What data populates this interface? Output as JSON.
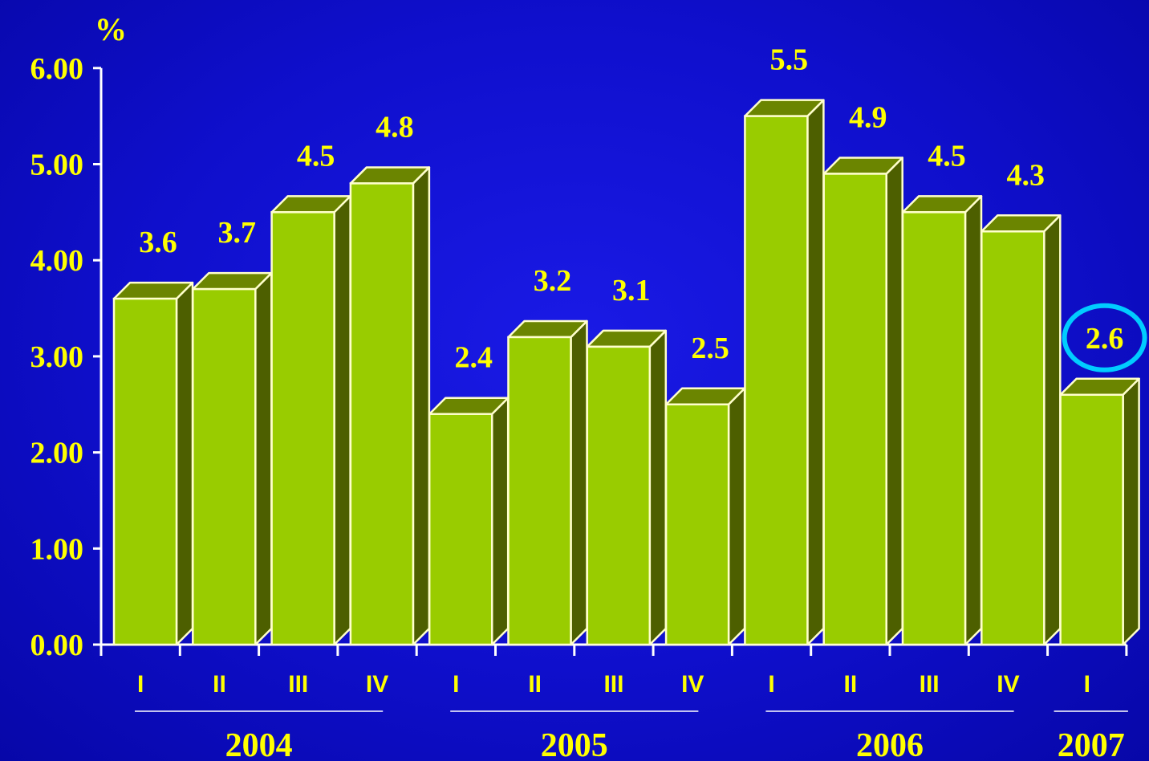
{
  "chart_data": {
    "type": "bar",
    "title": "",
    "ylabel": "%",
    "xlabel": "",
    "ylim": [
      0,
      6
    ],
    "yticks": [
      "0.00",
      "1.00",
      "2.00",
      "3.00",
      "4.00",
      "5.00",
      "6.00"
    ],
    "grid": false,
    "style": "3d",
    "categories": [
      "I",
      "II",
      "III",
      "IV",
      "I",
      "II",
      "III",
      "IV",
      "I",
      "II",
      "III",
      "IV",
      "I"
    ],
    "values": [
      3.6,
      3.7,
      4.5,
      4.8,
      2.4,
      3.2,
      3.1,
      2.5,
      5.5,
      4.9,
      4.5,
      4.3,
      2.6
    ],
    "data_labels": [
      "3.6",
      "3.7",
      "4.5",
      "4.8",
      "2.4",
      "3.2",
      "3.1",
      "2.5",
      "5.5",
      "4.9",
      "4.5",
      "4.3",
      "2.6"
    ],
    "groups": [
      {
        "label": "2004",
        "count": 4
      },
      {
        "label": "2005",
        "count": 4
      },
      {
        "label": "2006",
        "count": 4
      },
      {
        "label": "2007",
        "count": 1
      }
    ],
    "highlight_index": 12,
    "colors": {
      "bar_front": "#99cc00",
      "bar_side": "#4d5f00",
      "bar_top": "#6b8500",
      "bar_outline": "#ffffcc",
      "text": "#ffff00",
      "axis": "#ffffff",
      "highlight_ring": "#00ccff"
    }
  }
}
